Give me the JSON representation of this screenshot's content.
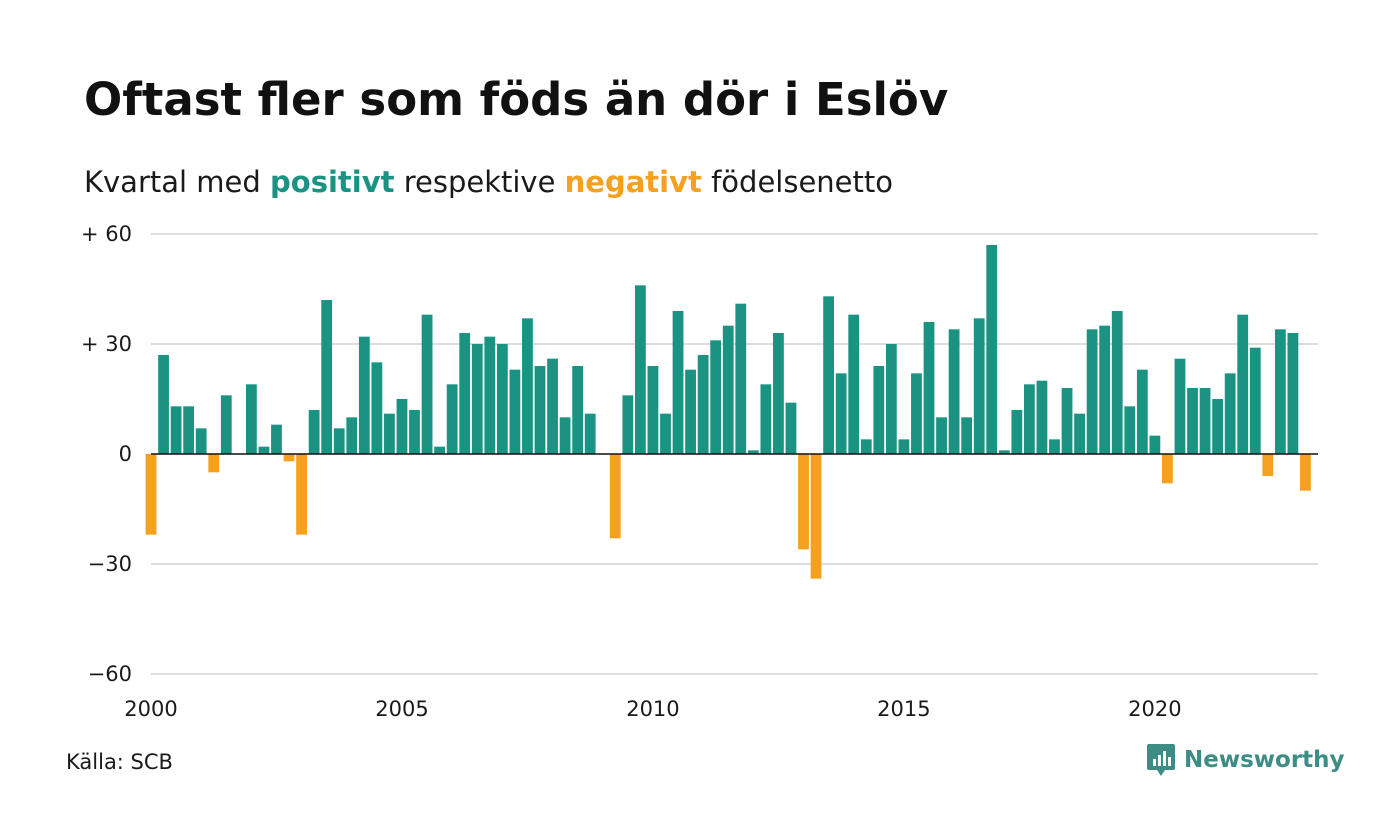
{
  "title": "Oftast fler som föds än dör i Eslöv",
  "subtitle": {
    "prefix": "Kvartal med",
    "positive_word": "positivt",
    "middle": "respektive",
    "negative_word": "negativt",
    "suffix": "födelsenetto"
  },
  "source": "Källa: SCB",
  "logo": {
    "text": "Newsworthy",
    "icon": "newsworthy-logo-icon"
  },
  "colors": {
    "positive": "#1a9383",
    "negative": "#f5a01f",
    "grid": "#dddddd",
    "zero": "#111111"
  },
  "chart_data": {
    "type": "bar",
    "title": "Oftast fler som föds än dör i Eslöv",
    "xlabel": "",
    "ylabel": "",
    "ylim": [
      -60,
      60
    ],
    "xlim": [
      2000,
      2023.25
    ],
    "y_ticks": [
      {
        "value": 60,
        "label": "+ 60"
      },
      {
        "value": 30,
        "label": "+ 30"
      },
      {
        "value": 0,
        "label": "0"
      },
      {
        "value": -30,
        "label": "−30"
      },
      {
        "value": -60,
        "label": "−60"
      }
    ],
    "x_ticks": [
      {
        "value": 2000,
        "label": "2000"
      },
      {
        "value": 2005,
        "label": "2005"
      },
      {
        "value": 2010,
        "label": "2010"
      },
      {
        "value": 2015,
        "label": "2015"
      },
      {
        "value": 2020,
        "label": "2020"
      }
    ],
    "grid": true,
    "start_year": 2000,
    "values": [
      -22,
      27,
      13,
      13,
      7,
      -5,
      16,
      0,
      19,
      2,
      8,
      -2,
      -22,
      12,
      42,
      7,
      10,
      32,
      25,
      11,
      15,
      12,
      38,
      2,
      19,
      33,
      30,
      32,
      30,
      23,
      37,
      24,
      26,
      10,
      24,
      11,
      0,
      -23,
      16,
      46,
      24,
      11,
      39,
      23,
      27,
      31,
      35,
      41,
      1,
      19,
      33,
      14,
      -26,
      -34,
      43,
      22,
      38,
      4,
      24,
      30,
      4,
      22,
      36,
      10,
      34,
      10,
      37,
      57,
      1,
      12,
      19,
      20,
      4,
      18,
      11,
      34,
      35,
      39,
      13,
      23,
      5,
      -8,
      26,
      18,
      18,
      15,
      22,
      38,
      29,
      -6,
      34,
      33,
      -10
    ]
  }
}
